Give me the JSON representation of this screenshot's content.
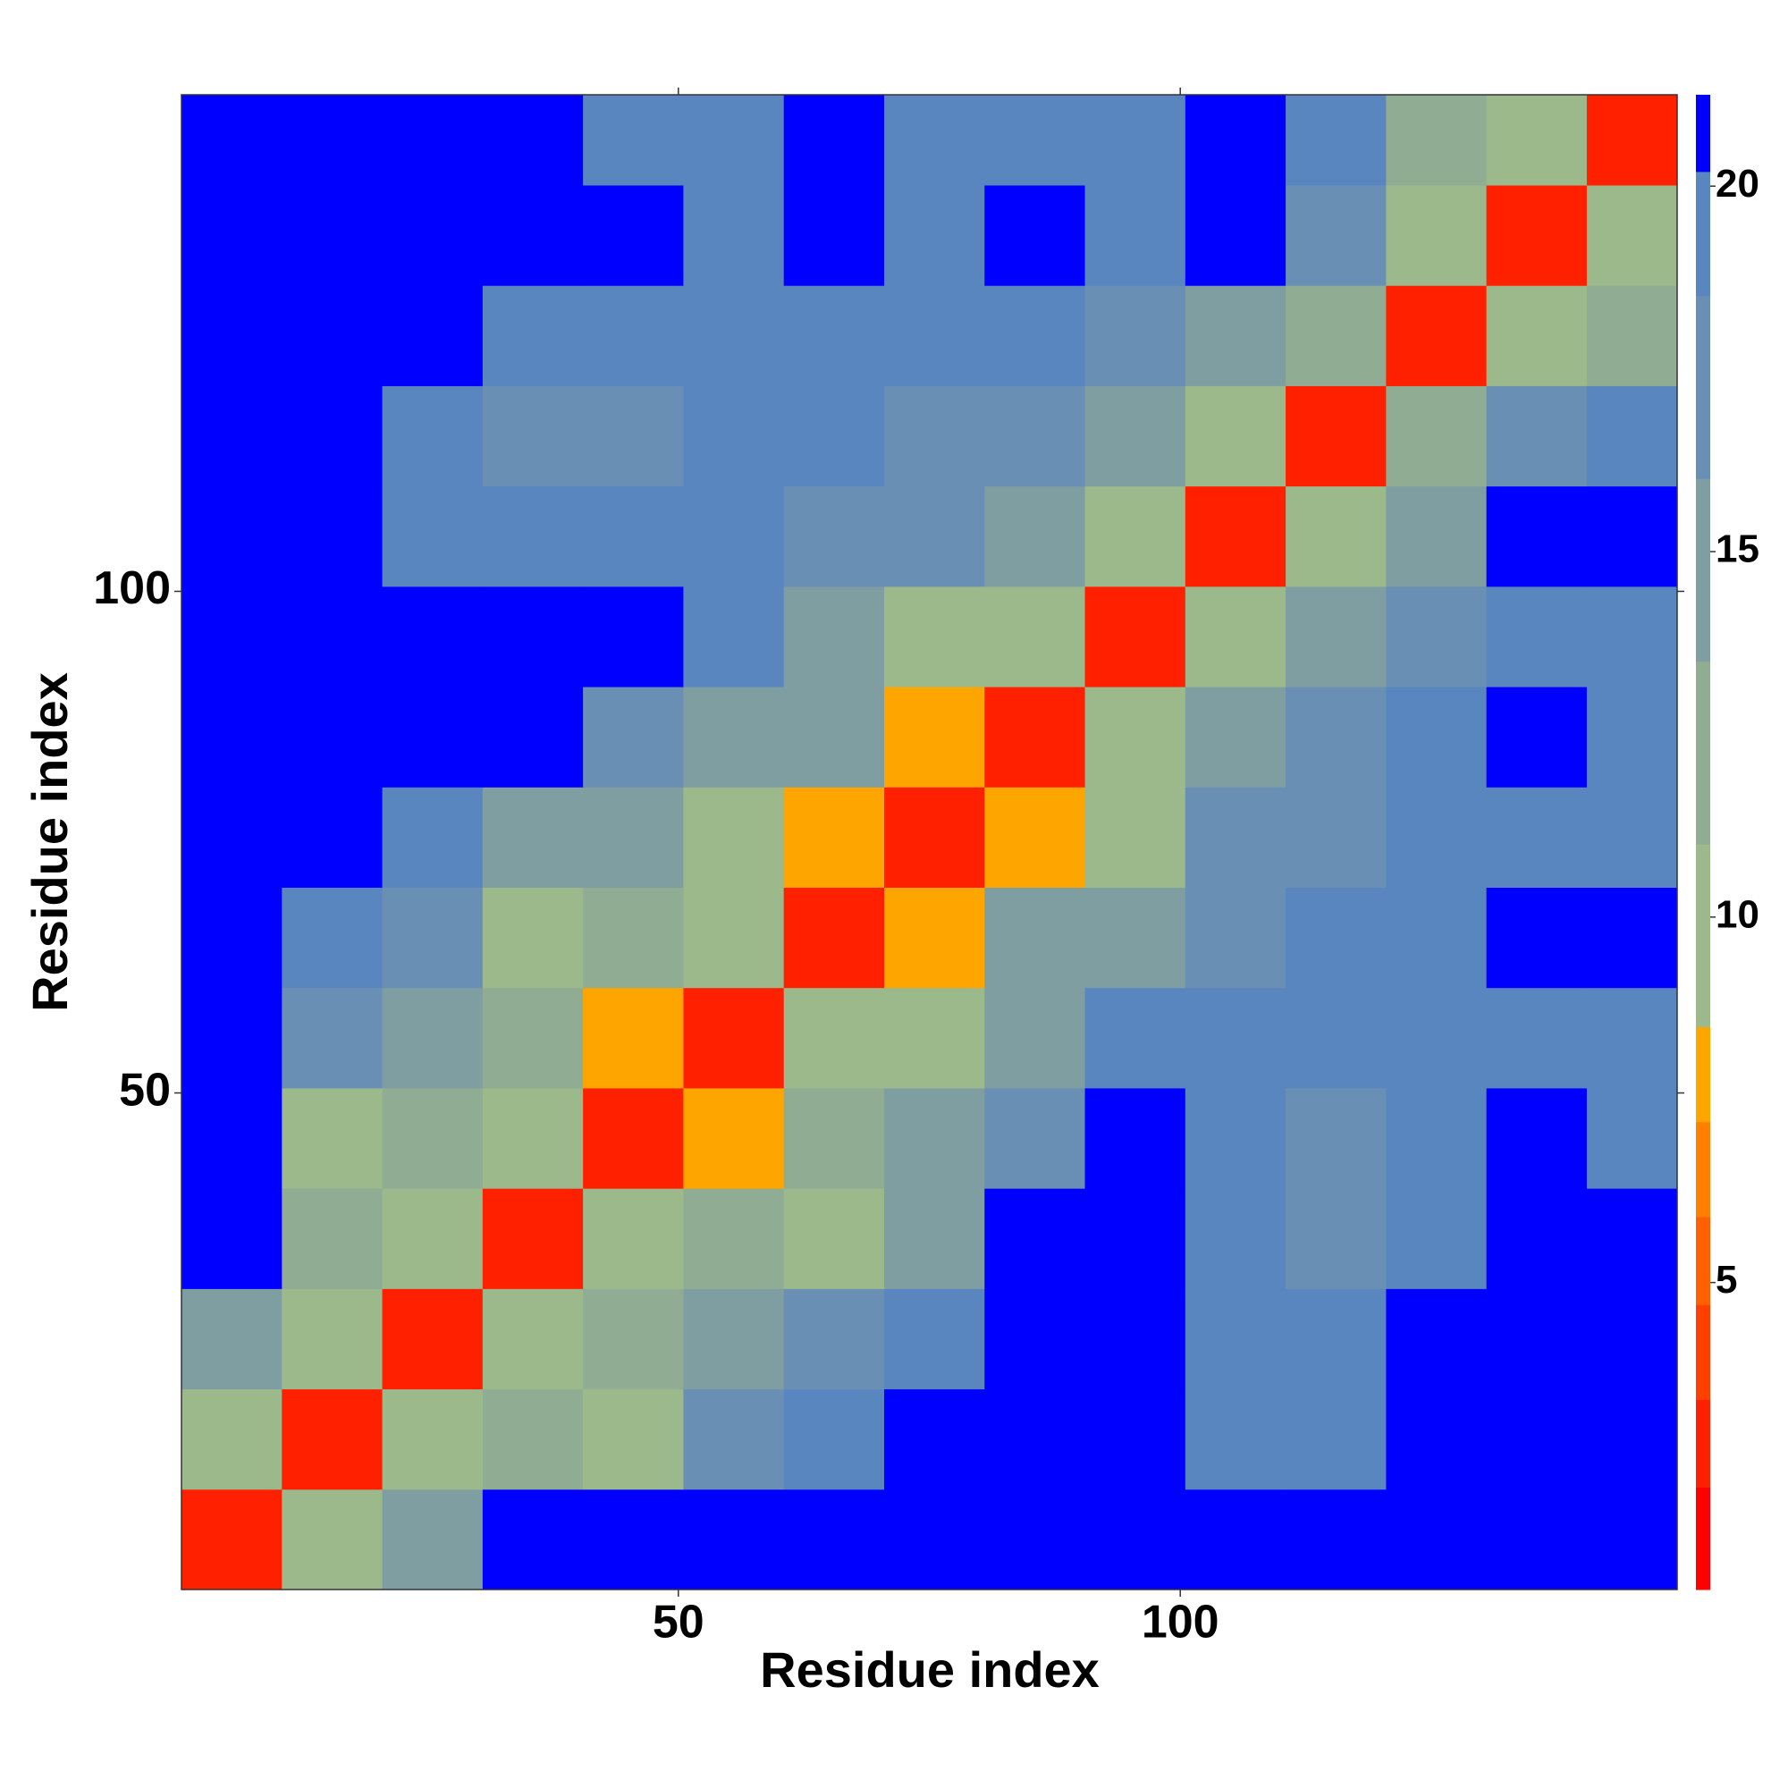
{
  "chart_data": {
    "type": "heatmap",
    "xlabel": "Residue index",
    "ylabel": "Residue index",
    "x": [
      5.5,
      15.5,
      25.5,
      35.5,
      45.5,
      55.5,
      65.5,
      75.5,
      85.5,
      95.5,
      105.5,
      115.5,
      125.5,
      135.5,
      145.5
    ],
    "y": [
      5.5,
      15.5,
      25.5,
      35.5,
      45.5,
      55.5,
      65.5,
      75.5,
      85.5,
      95.5,
      105.5,
      115.5,
      125.5,
      135.5,
      145.5
    ],
    "z": [
      [
        3,
        11,
        16,
        21,
        21,
        21,
        21,
        21,
        21,
        21,
        21,
        21,
        21,
        21,
        21
      ],
      [
        11,
        3,
        11,
        13,
        9,
        18,
        19,
        21,
        21,
        21,
        19,
        19,
        21,
        21,
        21
      ],
      [
        16,
        11,
        3,
        9,
        13,
        16,
        18,
        19,
        21,
        21,
        19,
        19,
        21,
        21,
        21
      ],
      [
        21,
        13,
        9,
        3,
        11,
        13,
        9,
        16,
        21,
        21,
        19,
        18,
        19,
        21,
        21
      ],
      [
        21,
        9,
        13,
        11,
        3,
        8,
        13,
        16,
        17,
        21,
        19,
        18,
        19,
        21,
        20
      ],
      [
        21,
        18,
        16,
        13,
        8,
        3,
        11,
        9,
        16,
        19,
        19,
        19,
        20,
        20,
        20
      ],
      [
        21,
        19,
        18,
        9,
        13,
        11,
        3,
        8,
        16,
        16,
        18,
        19,
        19,
        21,
        21
      ],
      [
        21,
        21,
        19,
        16,
        16,
        9,
        8,
        3,
        8,
        9,
        18,
        18,
        19,
        20,
        20
      ],
      [
        21,
        21,
        21,
        21,
        17,
        16,
        16,
        8,
        3,
        11,
        16,
        18,
        19,
        21,
        20
      ],
      [
        21,
        21,
        21,
        21,
        21,
        19,
        16,
        9,
        11,
        3,
        11,
        16,
        17,
        20,
        20
      ],
      [
        21,
        21,
        19,
        19,
        19,
        19,
        18,
        18,
        16,
        11,
        3,
        11,
        16,
        21,
        21
      ],
      [
        21,
        21,
        19,
        18,
        18,
        19,
        19,
        18,
        18,
        16,
        11,
        3,
        12,
        17,
        19
      ],
      [
        21,
        21,
        21,
        19,
        19,
        20,
        19,
        19,
        19,
        17,
        16,
        12,
        3,
        10,
        12
      ],
      [
        21,
        21,
        21,
        21,
        21,
        20,
        21,
        20,
        21,
        20,
        21,
        17,
        10,
        3,
        10
      ],
      [
        21,
        21,
        21,
        21,
        20,
        20,
        21,
        20,
        20,
        20,
        21,
        19,
        12,
        10,
        3
      ]
    ],
    "xlim": [
      0.5,
      149.5
    ],
    "ylim": [
      0.5,
      149.5
    ],
    "xticks": [
      50,
      100
    ],
    "yticks": [
      50,
      100
    ],
    "colorbar": {
      "clim": [
        0.8,
        21.25
      ],
      "ticks": [
        5,
        10,
        15,
        20
      ],
      "levels": [
        0.8,
        2.2,
        3.4,
        4.7,
        5.9,
        7.2,
        8.5,
        11,
        13.5,
        16,
        18.5,
        20.2,
        21.25
      ],
      "colors": [
        "#ff0000",
        "#ff2000",
        "#ff4000",
        "#ff6000",
        "#ff8000",
        "#ffa500",
        "#9cb98c",
        "#90ad94",
        "#7f9ea2",
        "#6a8fb5",
        "#5a86c0",
        "#0000ff"
      ]
    }
  }
}
